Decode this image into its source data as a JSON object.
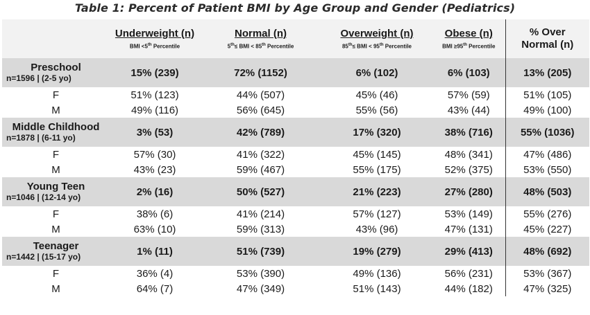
{
  "title": "Table 1: Percent of Patient BMI by Age Group and Gender (Pediatrics)",
  "headers": [
    {
      "label": "Underweight (n)",
      "sub_pre": "BMI <5",
      "sup": "th",
      "sub_post": " Percentile"
    },
    {
      "label": "Normal (n)",
      "sub_pre": "5",
      "sup": "th",
      "sub_post": "≤ BMI < 85",
      "sup2": "th",
      "sub_post2": " Percentile"
    },
    {
      "label": "Overweight (n)",
      "sub_pre": "85",
      "sup": "th",
      "sub_post": "≤ BMI < 95",
      "sup2": "th",
      "sub_post2": " Percentile"
    },
    {
      "label": "Obese (n)",
      "sub_pre": "BMI ≥95",
      "sup": "th",
      "sub_post": " Percentile"
    }
  ],
  "last_header": {
    "line1": "% Over",
    "line2": "Normal (n)"
  },
  "groups": [
    {
      "name": "Preschool",
      "sub": "n=1596 | (2-5 yo)",
      "values": [
        "15% (239)",
        "72% (1152)",
        "6% (102)",
        "6% (103)",
        "13% (205)"
      ],
      "rows": [
        {
          "label": "F",
          "values": [
            "51% (123)",
            "44% (507)",
            "45% (46)",
            "57% (59)",
            "51% (105)"
          ]
        },
        {
          "label": "M",
          "values": [
            "49% (116)",
            "56% (645)",
            "55% (56)",
            "43% (44)",
            "49% (100)"
          ]
        }
      ]
    },
    {
      "name": "Middle Childhood",
      "sub": "n=1878 | (6-11 yo)",
      "values": [
        "3% (53)",
        "42% (789)",
        "17% (320)",
        "38% (716)",
        "55% (1036)"
      ],
      "rows": [
        {
          "label": "F",
          "values": [
            "57% (30)",
            "41% (322)",
            "45% (145)",
            "48% (341)",
            "47% (486)"
          ]
        },
        {
          "label": "M",
          "values": [
            "43% (23)",
            "59% (467)",
            "55% (175)",
            "52% (375)",
            "53% (550)"
          ]
        }
      ]
    },
    {
      "name": "Young Teen",
      "sub": "n=1046 | (12-14 yo)",
      "values": [
        "2% (16)",
        "50% (527)",
        "21% (223)",
        "27% (280)",
        "48% (503)"
      ],
      "rows": [
        {
          "label": "F",
          "values": [
            "38% (6)",
            "41% (214)",
            "57% (127)",
            "53% (149)",
            "55% (276)"
          ]
        },
        {
          "label": "M",
          "values": [
            "63% (10)",
            "59% (313)",
            "43% (96)",
            "47% (131)",
            "45% (227)"
          ]
        }
      ]
    },
    {
      "name": "Teenager",
      "sub": "n=1442 | (15-17 yo)",
      "values": [
        "1% (11)",
        "51% (739)",
        "19% (279)",
        "29% (413)",
        "48% (692)"
      ],
      "rows": [
        {
          "label": "F",
          "values": [
            "36% (4)",
            "53% (390)",
            "49% (136)",
            "56% (231)",
            "53% (367)"
          ]
        },
        {
          "label": "M",
          "values": [
            "64% (7)",
            "47% (349)",
            "51% (143)",
            "44% (182)",
            "47% (325)"
          ]
        }
      ]
    }
  ]
}
